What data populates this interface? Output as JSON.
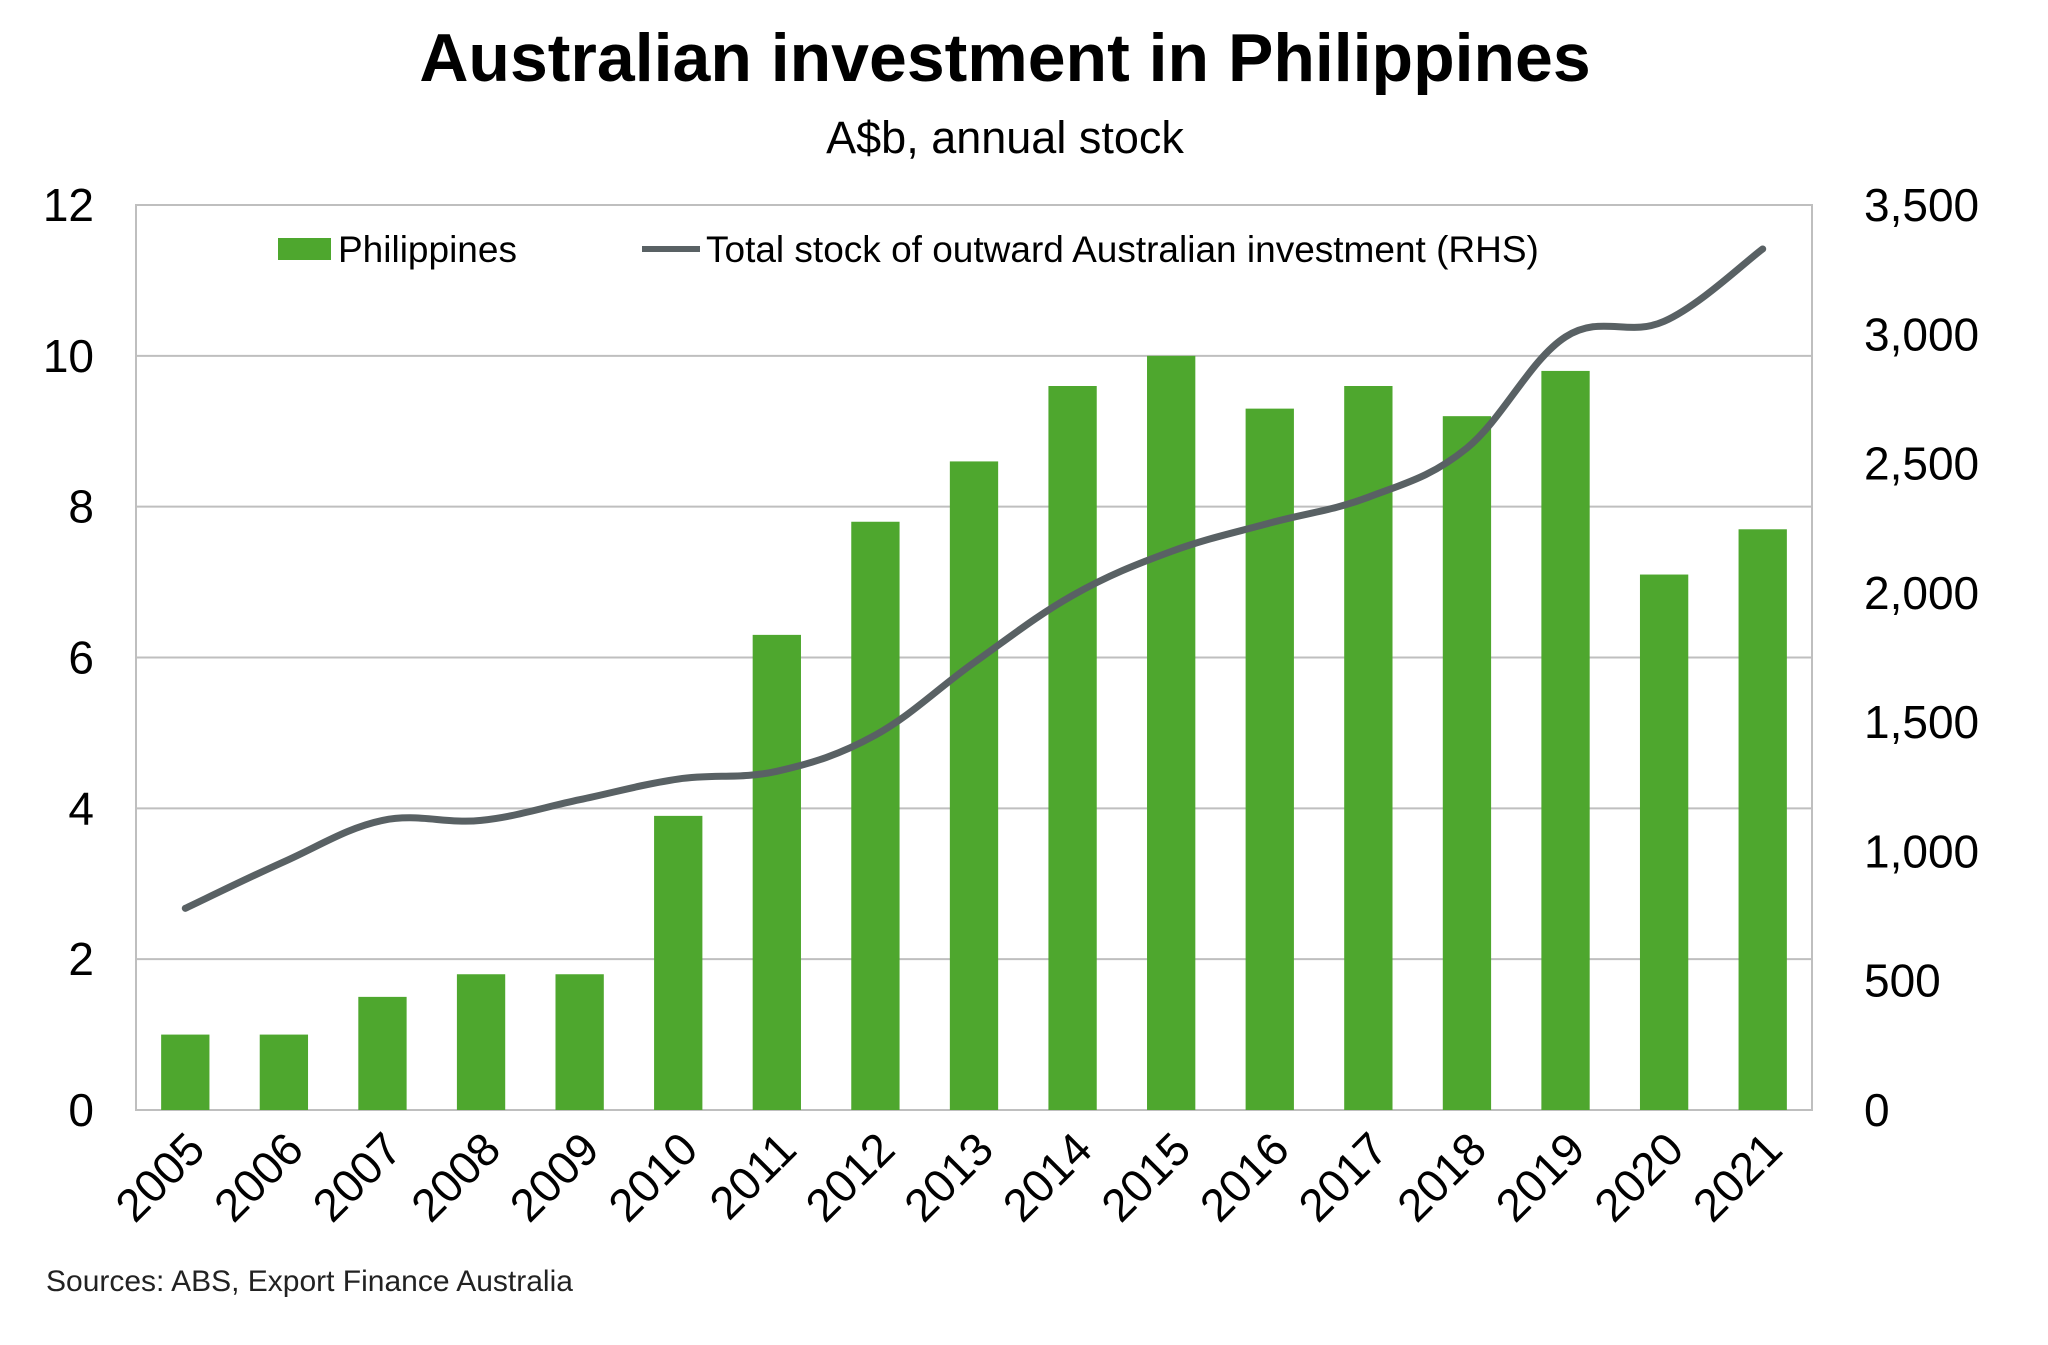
{
  "chart_data": {
    "type": "bar",
    "title": "Australian investment in Philippines",
    "subtitle": "A$b, annual stock",
    "categories": [
      "2005",
      "2006",
      "2007",
      "2008",
      "2009",
      "2010",
      "2011",
      "2012",
      "2013",
      "2014",
      "2015",
      "2016",
      "2017",
      "2018",
      "2019",
      "2020",
      "2021"
    ],
    "series": [
      {
        "name": "Philippines",
        "type": "bar",
        "axis": "left",
        "color": "#4ea72e",
        "values": [
          1.0,
          1.0,
          1.5,
          1.8,
          1.8,
          3.9,
          6.3,
          7.8,
          8.6,
          9.6,
          10.0,
          9.3,
          9.6,
          9.2,
          9.8,
          7.1,
          7.7
        ]
      },
      {
        "name": "Total stock of outward Australian investment (RHS)",
        "type": "line",
        "axis": "right",
        "color": "#596164",
        "values": [
          780,
          960,
          1120,
          1120,
          1200,
          1280,
          1310,
          1450,
          1730,
          1990,
          2160,
          2270,
          2370,
          2560,
          2990,
          3050,
          3330
        ]
      }
    ],
    "y_left": {
      "min": 0,
      "max": 12,
      "ticks": [
        "0",
        "2",
        "4",
        "6",
        "8",
        "10",
        "12"
      ]
    },
    "y_right": {
      "min": 0,
      "max": 3500,
      "ticks": [
        "0",
        "500",
        "1,000",
        "1,500",
        "2,000",
        "2,500",
        "3,000",
        "3,500"
      ]
    },
    "grid": "horizontal",
    "legend": "top"
  },
  "source": "Sources: ABS, Export Finance Australia"
}
